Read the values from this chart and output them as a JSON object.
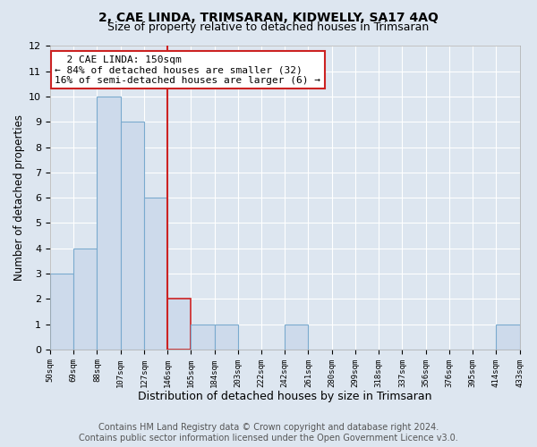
{
  "title": "2, CAE LINDA, TRIMSARAN, KIDWELLY, SA17 4AQ",
  "subtitle": "Size of property relative to detached houses in Trimsaran",
  "xlabel": "Distribution of detached houses by size in Trimsaran",
  "ylabel": "Number of detached properties",
  "bin_labels": [
    "50sqm",
    "69sqm",
    "88sqm",
    "107sqm",
    "127sqm",
    "146sqm",
    "165sqm",
    "184sqm",
    "203sqm",
    "222sqm",
    "242sqm",
    "261sqm",
    "280sqm",
    "299sqm",
    "318sqm",
    "337sqm",
    "356sqm",
    "376sqm",
    "395sqm",
    "414sqm",
    "433sqm"
  ],
  "bar_heights": [
    3,
    4,
    10,
    9,
    6,
    2,
    1,
    1,
    0,
    0,
    1,
    0,
    0,
    0,
    0,
    0,
    0,
    0,
    0,
    1
  ],
  "bar_color": "#cddaeb",
  "bar_edge_color": "#7aaace",
  "red_bar_index": 5,
  "red_bar_edge_color": "#cc2222",
  "vline_x": 5,
  "vline_color": "#cc2222",
  "ylim": [
    0,
    12
  ],
  "yticks": [
    0,
    1,
    2,
    3,
    4,
    5,
    6,
    7,
    8,
    9,
    10,
    11,
    12
  ],
  "annotation_title": "2 CAE LINDA: 150sqm",
  "annotation_line1": "← 84% of detached houses are smaller (32)",
  "annotation_line2": "16% of semi-detached houses are larger (6) →",
  "annotation_box_facecolor": "#ffffff",
  "annotation_box_edgecolor": "#cc2222",
  "footer_line1": "Contains HM Land Registry data © Crown copyright and database right 2024.",
  "footer_line2": "Contains public sector information licensed under the Open Government Licence v3.0.",
  "background_color": "#dde6f0",
  "plot_background_color": "#dde6f0",
  "grid_color": "#ffffff",
  "title_fontsize": 10,
  "subtitle_fontsize": 9,
  "ylabel_fontsize": 8.5,
  "xlabel_fontsize": 9,
  "footer_fontsize": 7,
  "num_bins": 20
}
